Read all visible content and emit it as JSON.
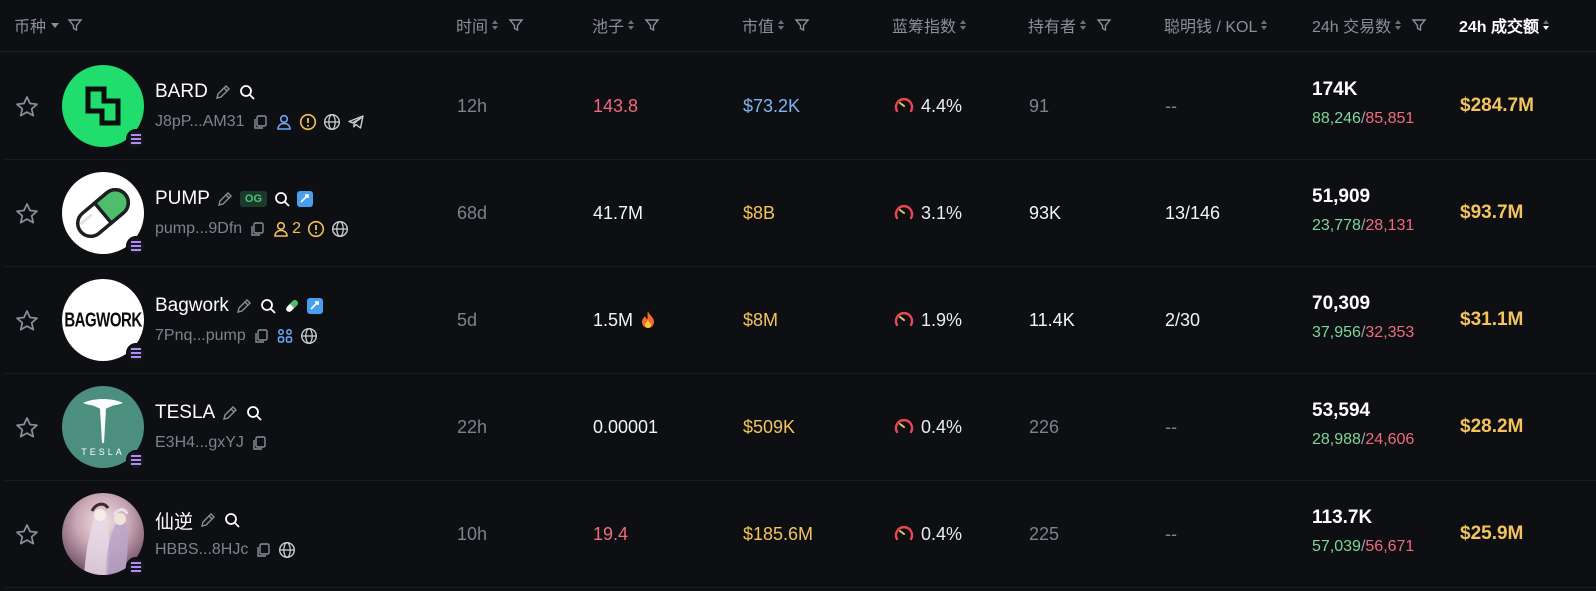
{
  "headers": {
    "token": "币种",
    "time": "时间",
    "pool": "池子",
    "mcap": "市值",
    "bluechip": "蓝筹指数",
    "holders": "持有者",
    "smart": "聪明钱 / KOL",
    "txs": "24h 交易数",
    "volume": "24h 成交额"
  },
  "colors": {
    "green": "#7fd69a",
    "red": "#f06b7d",
    "blue": "#7fb6f0",
    "gold": "#f3c45e",
    "bg": "#0e0f13"
  },
  "rows": [
    {
      "name": "BARD",
      "address": "J8pP...AM31",
      "time": "12h",
      "pool": "143.8",
      "mcap": "$73.2K",
      "bluechip": "4.4%",
      "holders": "91",
      "smart": "--",
      "txs": "174K",
      "buys": "88,246",
      "sells": "85,851",
      "volume": "$284.7M",
      "icons": [
        "edit-icon",
        "search-icon",
        "copy-icon",
        "user-icon",
        "warning-icon",
        "globe-icon",
        "telegram-icon"
      ]
    },
    {
      "name": "PUMP",
      "address": "pump...9Dfn",
      "time": "68d",
      "pool": "41.7M",
      "mcap": "$8B",
      "bluechip": "3.1%",
      "holders": "93K",
      "smart": "13/146",
      "txs": "51,909",
      "buys": "23,778",
      "sells": "28,131",
      "volume": "$93.7M",
      "badge": "OG",
      "dev_count": "2",
      "icons": [
        "edit-icon",
        "search-icon",
        "twitter-badge-icon",
        "copy-icon",
        "user-icon",
        "warning-icon",
        "globe-icon"
      ]
    },
    {
      "name": "Bagwork",
      "address": "7Pnq...pump",
      "time": "5d",
      "pool": "1.5M",
      "mcap": "$8M",
      "bluechip": "1.9%",
      "holders": "11.4K",
      "smart": "2/30",
      "txs": "70,309",
      "buys": "37,956",
      "sells": "32,353",
      "volume": "$31.1M",
      "avatar_text": "BAGWORK",
      "icons": [
        "edit-icon",
        "search-icon",
        "pill-icon",
        "twitter-badge-icon",
        "copy-icon",
        "group-icon",
        "globe-icon",
        "fire-icon"
      ]
    },
    {
      "name": "TESLA",
      "address": "E3H4...gxYJ",
      "time": "22h",
      "pool": "0.00001",
      "mcap": "$509K",
      "bluechip": "0.4%",
      "holders": "226",
      "smart": "--",
      "txs": "53,594",
      "buys": "28,988",
      "sells": "24,606",
      "volume": "$28.2M",
      "avatar_text": "TESLA",
      "icons": [
        "edit-icon",
        "search-icon",
        "copy-icon"
      ]
    },
    {
      "name": "仙逆",
      "address": "HBBS...8HJc",
      "time": "10h",
      "pool": "19.4",
      "mcap": "$185.6M",
      "bluechip": "0.4%",
      "holders": "225",
      "smart": "--",
      "txs": "113.7K",
      "buys": "57,039",
      "sells": "56,671",
      "volume": "$25.9M",
      "icons": [
        "edit-icon",
        "search-icon",
        "copy-icon",
        "globe-icon"
      ]
    }
  ]
}
